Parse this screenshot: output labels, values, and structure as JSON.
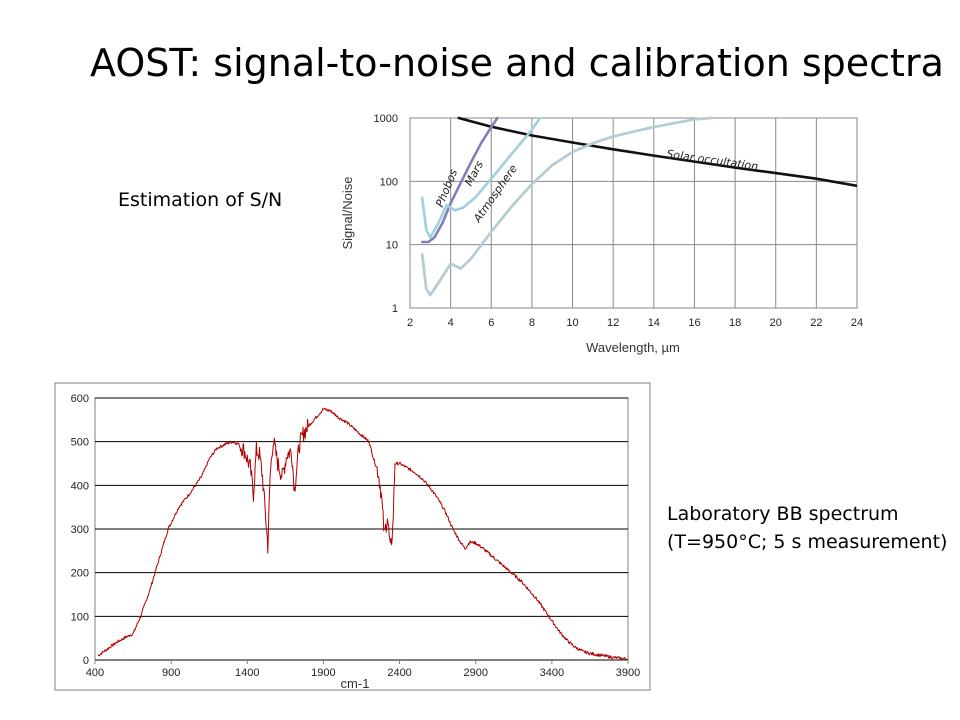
{
  "slide": {
    "title": "AOST: signal-to-noise and calibration spectra",
    "sn_label": "Estimation of S/N",
    "lab_label_line1": "Laboratory BB spectrum",
    "lab_label_line2": "(T=950°C; 5 s measurement)"
  },
  "chart_data": [
    {
      "type": "line",
      "xlabel": "Wavelength, µm",
      "ylabel": "Signal/Noise",
      "y_scale": "log",
      "xlim": [
        2,
        24
      ],
      "ylim": [
        1,
        1000
      ],
      "x_ticks": [
        "2",
        "4",
        "6",
        "8",
        "10",
        "12",
        "14",
        "16",
        "18",
        "20",
        "22",
        "24"
      ],
      "y_ticks": [
        "1",
        "10",
        "100",
        "1000"
      ],
      "grid": true,
      "series": [
        {
          "name": "Solar occultation",
          "color": "#111111",
          "points": [
            [
              4.4,
              1000
            ],
            [
              6,
              730
            ],
            [
              8,
              530
            ],
            [
              10,
              410
            ],
            [
              12,
              320
            ],
            [
              14,
              255
            ],
            [
              16,
              205
            ],
            [
              18,
              165
            ],
            [
              20,
              135
            ],
            [
              22,
              110
            ],
            [
              24,
              85
            ]
          ]
        },
        {
          "name": "Phobos",
          "color": "#8080b8",
          "points": [
            [
              2.6,
              11
            ],
            [
              2.9,
              11
            ],
            [
              3.2,
              13
            ],
            [
              3.6,
              22
            ],
            [
              4.0,
              45
            ],
            [
              4.5,
              95
            ],
            [
              5.0,
              200
            ],
            [
              5.5,
              400
            ],
            [
              6.0,
              720
            ],
            [
              6.3,
              1000
            ]
          ]
        },
        {
          "name": "Mars",
          "color": "#a0d0dc",
          "points": [
            [
              2.6,
              55
            ],
            [
              2.8,
              17
            ],
            [
              3.0,
              13
            ],
            [
              3.4,
              22
            ],
            [
              3.8,
              42
            ],
            [
              4.2,
              35
            ],
            [
              4.6,
              38
            ],
            [
              5.2,
              55
            ],
            [
              6.0,
              110
            ],
            [
              7.0,
              270
            ],
            [
              8.0,
              650
            ],
            [
              8.4,
              1000
            ]
          ]
        },
        {
          "name": "Atmosphere",
          "color": "#b8ccd4",
          "points": [
            [
              2.6,
              7
            ],
            [
              2.8,
              2
            ],
            [
              3.0,
              1.6
            ],
            [
              3.5,
              2.8
            ],
            [
              4.0,
              5
            ],
            [
              4.5,
              4.2
            ],
            [
              5.0,
              6
            ],
            [
              6.0,
              16
            ],
            [
              7.0,
              40
            ],
            [
              8.0,
              90
            ],
            [
              9.0,
              180
            ],
            [
              10.0,
              290
            ],
            [
              11.0,
              400
            ],
            [
              12.0,
              510
            ],
            [
              13.0,
              610
            ],
            [
              14.0,
              720
            ],
            [
              15.0,
              830
            ],
            [
              16.0,
              950
            ],
            [
              16.8,
              1000
            ]
          ]
        }
      ]
    },
    {
      "type": "line",
      "xlabel": "cm-1",
      "ylabel": "",
      "xlim": [
        400,
        3900
      ],
      "ylim": [
        0,
        600
      ],
      "x_ticks": [
        "400",
        "900",
        "1400",
        "1900",
        "2400",
        "2900",
        "3400",
        "3900"
      ],
      "y_ticks": [
        "0",
        "100",
        "200",
        "300",
        "400",
        "500",
        "600"
      ],
      "grid": true,
      "series": [
        {
          "name": "",
          "color": "#b00000",
          "points": [
            [
              420,
              10
            ],
            [
              480,
              25
            ],
            [
              540,
              40
            ],
            [
              600,
              52
            ],
            [
              650,
              60
            ],
            [
              700,
              100
            ],
            [
              760,
              160
            ],
            [
              820,
              230
            ],
            [
              880,
              300
            ],
            [
              950,
              350
            ],
            [
              1030,
              385
            ],
            [
              1100,
              420
            ],
            [
              1150,
              460
            ],
            [
              1200,
              485
            ],
            [
              1260,
              495
            ],
            [
              1300,
              500
            ],
            [
              1340,
              495
            ],
            [
              1380,
              480
            ],
            [
              1420,
              440
            ],
            [
              1440,
              380
            ],
            [
              1460,
              480
            ],
            [
              1480,
              470
            ],
            [
              1500,
              420
            ],
            [
              1520,
              330
            ],
            [
              1535,
              260
            ],
            [
              1550,
              420
            ],
            [
              1570,
              505
            ],
            [
              1600,
              450
            ],
            [
              1630,
              420
            ],
            [
              1660,
              470
            ],
            [
              1690,
              480
            ],
            [
              1710,
              390
            ],
            [
              1740,
              490
            ],
            [
              1770,
              520
            ],
            [
              1800,
              535
            ],
            [
              1850,
              555
            ],
            [
              1900,
              575
            ],
            [
              1950,
              570
            ],
            [
              2000,
              555
            ],
            [
              2050,
              545
            ],
            [
              2100,
              530
            ],
            [
              2150,
              515
            ],
            [
              2200,
              500
            ],
            [
              2230,
              460
            ],
            [
              2260,
              430
            ],
            [
              2280,
              380
            ],
            [
              2300,
              285
            ],
            [
              2320,
              330
            ],
            [
              2340,
              250
            ],
            [
              2355,
              300
            ],
            [
              2370,
              450
            ],
            [
              2400,
              450
            ],
            [
              2450,
              440
            ],
            [
              2500,
              430
            ],
            [
              2550,
              415
            ],
            [
              2600,
              395
            ],
            [
              2650,
              370
            ],
            [
              2700,
              340
            ],
            [
              2750,
              300
            ],
            [
              2800,
              270
            ],
            [
              2830,
              255
            ],
            [
              2860,
              270
            ],
            [
              2900,
              268
            ],
            [
              2950,
              255
            ],
            [
              3000,
              240
            ],
            [
              3050,
              225
            ],
            [
              3100,
              210
            ],
            [
              3150,
              195
            ],
            [
              3200,
              180
            ],
            [
              3250,
              160
            ],
            [
              3300,
              140
            ],
            [
              3350,
              115
            ],
            [
              3400,
              90
            ],
            [
              3450,
              65
            ],
            [
              3500,
              45
            ],
            [
              3550,
              30
            ],
            [
              3600,
              20
            ],
            [
              3650,
              15
            ],
            [
              3700,
              12
            ],
            [
              3750,
              9
            ],
            [
              3800,
              6
            ],
            [
              3850,
              4
            ],
            [
              3900,
              2
            ]
          ]
        }
      ]
    }
  ]
}
